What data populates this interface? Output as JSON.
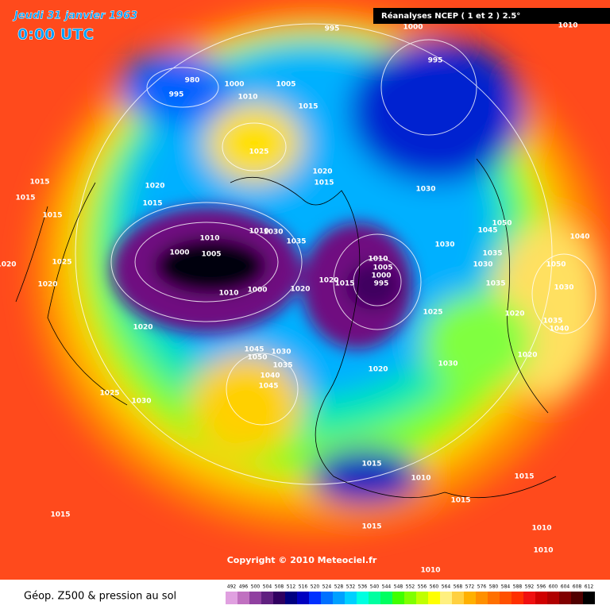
{
  "header": {
    "date": "Jeudi 31 janvier 1963",
    "time": "0:00 UTC",
    "source": "Réanalyses NCEP ( 1 et 2 ) 2.5°"
  },
  "map": {
    "copyright": "Copyright © 2010 Meteociel.fr",
    "pressure_labels": [
      995,
      1000,
      1010,
      980,
      995,
      1000,
      1005,
      1010,
      995,
      1015,
      1025,
      1020,
      1015,
      1030,
      1015,
      1020,
      1015,
      1015,
      1015,
      1010,
      1010,
      1030,
      1035,
      1000,
      1005,
      1025,
      1020,
      1010,
      1005,
      1000,
      995,
      1020,
      1015,
      1020,
      1000,
      1010,
      1020,
      1050,
      1045,
      1035,
      1030,
      1030,
      1035,
      1040,
      1050,
      1030,
      1025,
      1020,
      1035,
      1040,
      1020,
      1045,
      1030,
      1050,
      1035,
      1040,
      1045,
      1020,
      1030,
      1020,
      1025,
      1030,
      1015,
      1010,
      1015,
      1015,
      1015,
      1015,
      1010,
      1010,
      1010
    ]
  },
  "legend": {
    "title": "Géop. Z500 & pression au sol",
    "values": [
      492,
      496,
      500,
      504,
      508,
      512,
      516,
      520,
      524,
      528,
      532,
      536,
      540,
      544,
      548,
      552,
      556,
      560,
      564,
      568,
      572,
      576,
      580,
      584,
      588,
      592,
      596,
      600,
      604,
      608,
      612
    ],
    "colors": [
      "#e0a0e0",
      "#c070c0",
      "#9040a0",
      "#602080",
      "#300060",
      "#000080",
      "#0000c0",
      "#0030ff",
      "#0070ff",
      "#00a0ff",
      "#00d0ff",
      "#00ffe0",
      "#00ffa0",
      "#00ff60",
      "#40ff00",
      "#80ff00",
      "#c0ff00",
      "#ffff00",
      "#fff080",
      "#ffd040",
      "#ffb000",
      "#ff9000",
      "#ff7000",
      "#ff5000",
      "#ff3000",
      "#f01010",
      "#d00000",
      "#b00000",
      "#800000",
      "#500000",
      "#000000"
    ]
  }
}
